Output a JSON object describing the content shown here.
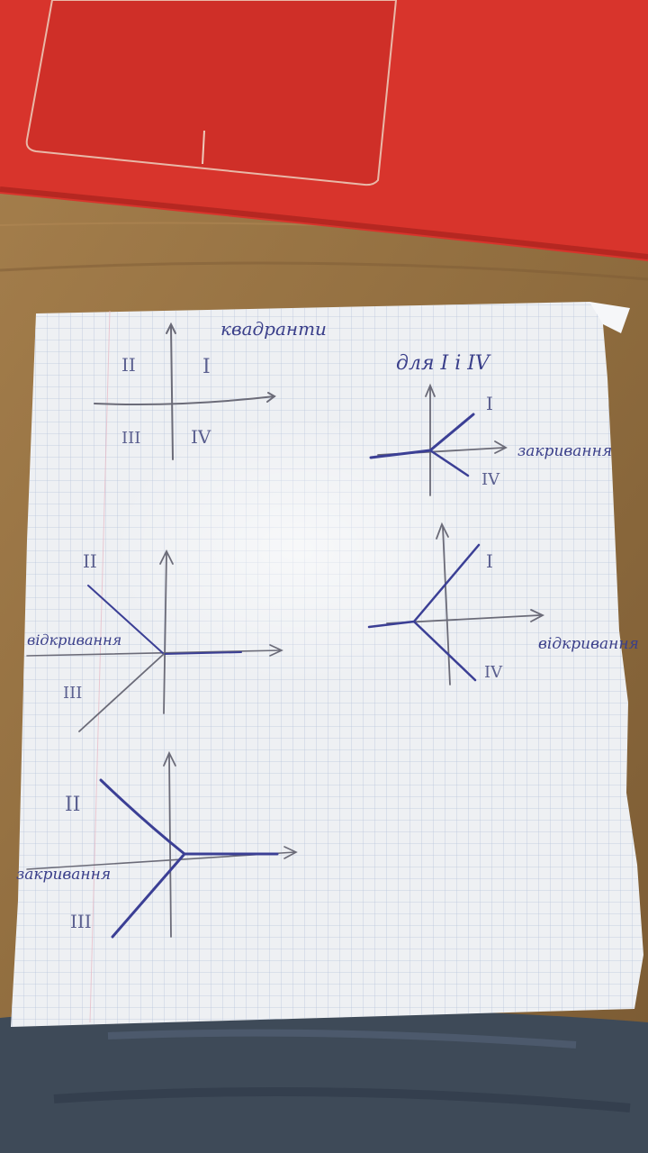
{
  "scene": {
    "description_objects": [
      "laptop-lid",
      "wooden-desk",
      "graph-paper-sheet",
      "jeans"
    ],
    "colors": {
      "laptop": "#d8342c",
      "desk": "#9a7645",
      "paper": "#eef0f3",
      "grid": "#b9c6dc",
      "ink": "#3b3f95",
      "jeans": "#3e4a58"
    }
  },
  "notes": {
    "title_quadrants": "квадранти",
    "title_for": "для I і IV",
    "label_closing": "закривання",
    "label_opening": "відкривання",
    "label_opening_left": "відкривання",
    "label_closing_left": "закривання",
    "numerals": {
      "q1": "I",
      "q2": "II",
      "q3": "III",
      "q4": "IV"
    }
  }
}
